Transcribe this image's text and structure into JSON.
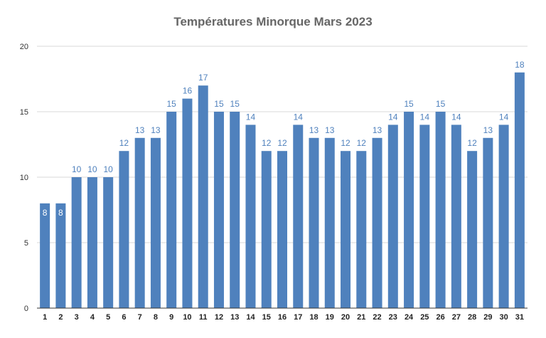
{
  "chart_data": {
    "type": "bar",
    "title": "Températures Minorque Mars 2023",
    "xlabel": "",
    "ylabel": "",
    "ylim": [
      0,
      20
    ],
    "yticks": [
      0,
      5,
      10,
      15,
      20
    ],
    "grid": true,
    "legend": "none",
    "categories": [
      "1",
      "2",
      "3",
      "4",
      "5",
      "6",
      "7",
      "8",
      "9",
      "10",
      "11",
      "12",
      "13",
      "14",
      "15",
      "16",
      "17",
      "18",
      "19",
      "20",
      "21",
      "22",
      "23",
      "24",
      "25",
      "26",
      "27",
      "28",
      "29",
      "30",
      "31"
    ],
    "values": [
      8,
      8,
      10,
      10,
      10,
      12,
      13,
      13,
      15,
      16,
      17,
      15,
      15,
      14,
      12,
      12,
      14,
      13,
      13,
      12,
      12,
      13,
      14,
      15,
      14,
      15,
      14,
      12,
      13,
      14,
      18
    ],
    "colors": {
      "bar": "#4f81bd",
      "label_outside": "#4f81bd",
      "label_inside": "#ffffff",
      "grid": "#d9d9d9",
      "axis": "#333333"
    }
  }
}
